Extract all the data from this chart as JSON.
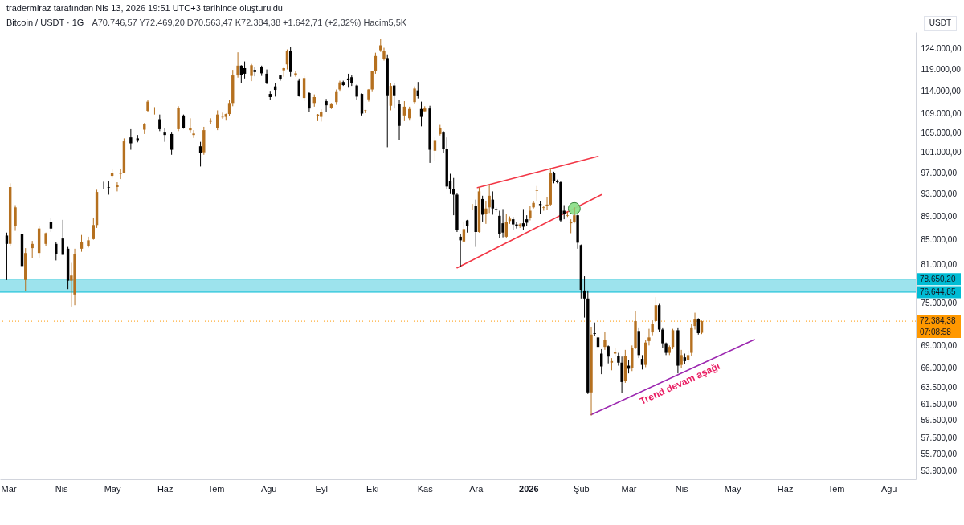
{
  "chart_data": {
    "type": "candlestick",
    "title": "Bitcoin / USDT · 1G",
    "subtitle": "A70.746,57 Y72.469,20 D70.563,47 K72.384,38 +1.642,71 (+2,32%) Hacim5,5K",
    "annotations": [
      "tradermiraz tarafından Nis 13, 2026 19:51 UTC+3 tarihinde oluşturuldu",
      "USDT",
      "07:08:58",
      "Trend devam aşağı"
    ],
    "x": [
      "2025-02-28",
      "2025-03-02",
      "2025-03-05",
      "2025-03-09",
      "2025-03-11",
      "2025-03-15",
      "2025-03-19",
      "2025-03-23",
      "2025-03-26",
      "2025-03-29",
      "2025-04-02",
      "2025-04-05",
      "2025-04-07",
      "2025-04-09",
      "2025-04-13",
      "2025-04-17",
      "2025-04-20",
      "2025-04-22",
      "2025-04-26",
      "2025-04-29",
      "2025-05-01",
      "2025-05-04",
      "2025-05-06",
      "2025-05-08",
      "2025-05-12",
      "2025-05-16",
      "2025-05-20",
      "2025-05-22",
      "2025-05-26",
      "2025-05-29",
      "2025-06-01",
      "2025-06-05",
      "2025-06-09",
      "2025-06-12",
      "2025-06-16",
      "2025-06-18",
      "2025-06-22",
      "2025-06-24",
      "2025-06-28",
      "2025-07-02",
      "2025-07-05",
      "2025-07-07",
      "2025-07-09",
      "2025-07-11",
      "2025-07-14",
      "2025-07-16",
      "2025-07-18",
      "2025-07-22",
      "2025-07-24",
      "2025-07-28",
      "2025-07-31",
      "2025-08-02",
      "2025-08-05",
      "2025-08-08",
      "2025-08-10",
      "2025-08-12",
      "2025-08-14",
      "2025-08-17",
      "2025-08-19",
      "2025-08-22",
      "2025-08-25",
      "2025-08-28",
      "2025-08-30",
      "2025-09-01",
      "2025-09-04",
      "2025-09-07",
      "2025-09-10",
      "2025-09-12",
      "2025-09-14",
      "2025-09-17",
      "2025-09-19",
      "2025-09-22",
      "2025-09-25",
      "2025-09-27",
      "2025-09-29",
      "2025-10-01",
      "2025-10-03",
      "2025-10-06",
      "2025-10-08",
      "2025-10-10",
      "2025-10-12",
      "2025-10-14",
      "2025-10-17",
      "2025-10-20",
      "2025-10-23",
      "2025-10-26",
      "2025-10-28",
      "2025-10-30",
      "2025-11-01",
      "2025-11-04",
      "2025-11-07",
      "2025-11-10",
      "2025-11-12",
      "2025-11-14",
      "2025-11-16",
      "2025-11-18",
      "2025-11-20",
      "2025-11-22",
      "2025-11-24",
      "2025-11-26",
      "2025-11-29",
      "2025-12-01",
      "2025-12-03",
      "2025-12-05",
      "2025-12-07",
      "2025-12-09",
      "2025-12-11",
      "2025-12-13",
      "2025-12-15",
      "2025-12-17",
      "2025-12-19",
      "2025-12-21",
      "2025-12-23",
      "2025-12-25",
      "2025-12-27",
      "2025-12-29",
      "2025-12-31",
      "2026-01-02",
      "2026-01-04",
      "2026-01-06",
      "2026-01-08",
      "2026-01-10",
      "2026-01-12",
      "2026-01-14",
      "2026-01-16",
      "2026-01-18",
      "2026-01-20",
      "2026-01-22",
      "2026-01-24",
      "2026-01-26",
      "2026-01-28",
      "2026-01-30",
      "2026-02-01",
      "2026-02-03",
      "2026-02-05",
      "2026-02-07",
      "2026-02-09",
      "2026-02-11",
      "2026-02-13",
      "2026-02-15",
      "2026-02-17",
      "2026-02-19",
      "2026-02-21",
      "2026-02-23",
      "2026-02-25",
      "2026-02-27",
      "2026-03-01",
      "2026-03-03",
      "2026-03-05",
      "2026-03-07",
      "2026-03-09",
      "2026-03-11",
      "2026-03-13",
      "2026-03-15",
      "2026-03-17",
      "2026-03-19",
      "2026-03-21",
      "2026-03-23",
      "2026-03-25",
      "2026-03-27",
      "2026-03-30",
      "2026-04-01",
      "2026-04-03",
      "2026-04-05",
      "2026-04-07",
      "2026-04-09",
      "2026-04-11",
      "2026-04-13"
    ],
    "ohlc": [
      [
        85700,
        86200,
        78500,
        84300
      ],
      [
        84300,
        95000,
        84000,
        94300
      ],
      [
        87300,
        91000,
        86500,
        90600
      ],
      [
        86000,
        86500,
        80600,
        80700
      ],
      [
        78500,
        83600,
        76800,
        82800
      ],
      [
        83600,
        84800,
        82000,
        84300
      ],
      [
        82800,
        87300,
        82000,
        86900
      ],
      [
        84300,
        86200,
        83900,
        86100
      ],
      [
        88000,
        88700,
        86300,
        86900
      ],
      [
        84300,
        84600,
        81600,
        82600
      ],
      [
        85200,
        88400,
        82500,
        82500
      ],
      [
        83500,
        83800,
        77100,
        78400
      ],
      [
        78400,
        81200,
        74500,
        79200
      ],
      [
        76300,
        83500,
        74700,
        82600
      ],
      [
        83500,
        85800,
        83000,
        84600
      ],
      [
        84000,
        85500,
        83700,
        84900
      ],
      [
        85100,
        88800,
        85000,
        87500
      ],
      [
        87500,
        93800,
        87000,
        93400
      ],
      [
        94700,
        95300,
        93900,
        94600
      ],
      [
        94300,
        95500,
        92900,
        94200
      ],
      [
        96400,
        97800,
        96000,
        96900
      ],
      [
        94300,
        95200,
        93500,
        94700
      ],
      [
        96800,
        97700,
        95800,
        97000
      ],
      [
        97000,
        103800,
        96900,
        103200
      ],
      [
        104000,
        105700,
        101500,
        102800
      ],
      [
        103800,
        104500,
        103000,
        103300
      ],
      [
        105600,
        107000,
        104700,
        106800
      ],
      [
        109600,
        111900,
        109300,
        111600
      ],
      [
        109300,
        110400,
        108800,
        109400
      ],
      [
        107800,
        108800,
        105300,
        105700
      ],
      [
        105000,
        105900,
        103100,
        104500
      ],
      [
        104700,
        105000,
        100500,
        101500
      ],
      [
        105700,
        110600,
        105300,
        110300
      ],
      [
        108600,
        108800,
        105800,
        106000
      ],
      [
        105500,
        108000,
        104900,
        106000
      ],
      [
        104500,
        105500,
        103900,
        104800
      ],
      [
        102200,
        103100,
        98200,
        100900
      ],
      [
        101000,
        106200,
        100500,
        105500
      ],
      [
        107300,
        108000,
        106800,
        107400
      ],
      [
        105900,
        109700,
        105500,
        108800
      ],
      [
        108200,
        109200,
        107900,
        108300
      ],
      [
        108300,
        109000,
        107500,
        108900
      ],
      [
        108900,
        111900,
        108400,
        111300
      ],
      [
        111300,
        118800,
        110600,
        117500
      ],
      [
        117500,
        123000,
        117000,
        119800
      ],
      [
        119800,
        119900,
        115700,
        117700
      ],
      [
        119200,
        120800,
        116800,
        117900
      ],
      [
        117400,
        120200,
        116200,
        119900
      ],
      [
        118800,
        119500,
        117300,
        118300
      ],
      [
        119400,
        119800,
        117400,
        118000
      ],
      [
        117900,
        118900,
        115500,
        115800
      ],
      [
        113300,
        114000,
        112000,
        112600
      ],
      [
        115000,
        115700,
        112700,
        114200
      ],
      [
        117500,
        117600,
        116300,
        116600
      ],
      [
        118700,
        119300,
        117200,
        119200
      ],
      [
        120100,
        123700,
        118900,
        123300
      ],
      [
        123300,
        124400,
        117200,
        118300
      ],
      [
        117500,
        118600,
        117200,
        118000
      ],
      [
        116300,
        116800,
        112700,
        112900
      ],
      [
        112400,
        117400,
        111700,
        116900
      ],
      [
        113500,
        113700,
        109300,
        110100
      ],
      [
        111300,
        113200,
        110500,
        112600
      ],
      [
        108400,
        108900,
        107400,
        108800
      ],
      [
        108300,
        109900,
        107300,
        109300
      ],
      [
        111700,
        112200,
        109300,
        110800
      ],
      [
        110300,
        111300,
        110000,
        111200
      ],
      [
        111500,
        114300,
        110900,
        113900
      ],
      [
        114300,
        116300,
        114000,
        115900
      ],
      [
        116000,
        116300,
        115100,
        115300
      ],
      [
        116800,
        117900,
        114700,
        116400
      ],
      [
        117100,
        117500,
        115100,
        115700
      ],
      [
        115200,
        115400,
        111900,
        112700
      ],
      [
        113300,
        113400,
        108600,
        109000
      ],
      [
        109600,
        109800,
        109100,
        109700
      ],
      [
        112100,
        114400,
        111600,
        114300
      ],
      [
        114300,
        118600,
        113900,
        118500
      ],
      [
        118500,
        122900,
        117900,
        122100
      ],
      [
        123500,
        126200,
        123100,
        124700
      ],
      [
        121400,
        124100,
        121000,
        123300
      ],
      [
        121600,
        122500,
        102000,
        113000
      ],
      [
        110700,
        115700,
        109700,
        115100
      ],
      [
        115200,
        115700,
        110100,
        113000
      ],
      [
        111000,
        111900,
        103500,
        106400
      ],
      [
        108600,
        111700,
        107400,
        110500
      ],
      [
        108000,
        110500,
        107500,
        110000
      ],
      [
        111500,
        115000,
        111200,
        114500
      ],
      [
        114100,
        116000,
        112300,
        112900
      ],
      [
        110000,
        111600,
        106300,
        108300
      ],
      [
        109500,
        110600,
        109500,
        110100
      ],
      [
        110100,
        110700,
        98900,
        101500
      ],
      [
        101300,
        104000,
        99300,
        103300
      ],
      [
        104700,
        106600,
        104400,
        105900
      ],
      [
        105000,
        105300,
        100800,
        101600
      ],
      [
        101600,
        104000,
        94000,
        94400
      ],
      [
        95500,
        96800,
        93000,
        94000
      ],
      [
        94000,
        96000,
        89200,
        92900
      ],
      [
        92900,
        93100,
        86300,
        86600
      ],
      [
        85500,
        86000,
        80600,
        84900
      ],
      [
        84700,
        88000,
        84600,
        86800
      ],
      [
        88300,
        88400,
        86200,
        87400
      ],
      [
        90800,
        91200,
        90200,
        90900
      ],
      [
        90900,
        92000,
        83800,
        86300
      ],
      [
        86300,
        94200,
        86200,
        93500
      ],
      [
        92100,
        92700,
        88100,
        89300
      ],
      [
        89400,
        91800,
        87700,
        90400
      ],
      [
        90600,
        94600,
        89600,
        92700
      ],
      [
        92000,
        93500,
        89300,
        90400
      ],
      [
        90300,
        90600,
        89800,
        90100
      ],
      [
        89100,
        90000,
        85300,
        86000
      ],
      [
        87800,
        90300,
        85400,
        86200
      ],
      [
        85500,
        89400,
        85300,
        88100
      ],
      [
        88200,
        89000,
        87700,
        88600
      ],
      [
        88500,
        88900,
        86600,
        87600
      ],
      [
        87600,
        88000,
        86900,
        87300
      ],
      [
        87300,
        87800,
        87000,
        87600
      ],
      [
        87800,
        90300,
        86700,
        87200
      ],
      [
        88500,
        89200,
        87400,
        87900
      ],
      [
        88700,
        90900,
        88300,
        90000
      ],
      [
        90600,
        91800,
        90400,
        91400
      ],
      [
        93600,
        94500,
        91800,
        93700
      ],
      [
        91200,
        91700,
        89500,
        91000
      ],
      [
        90500,
        90800,
        90000,
        90600
      ],
      [
        90800,
        92400,
        90100,
        91100
      ],
      [
        91100,
        97900,
        90900,
        97000
      ],
      [
        97000,
        97200,
        95000,
        95500
      ],
      [
        95500,
        95700,
        95000,
        95200
      ],
      [
        95200,
        95500,
        88000,
        88300
      ],
      [
        90000,
        91000,
        88500,
        89500
      ],
      [
        89100,
        89800,
        88900,
        89200
      ],
      [
        87800,
        88500,
        86100,
        88100
      ],
      [
        88100,
        90600,
        87800,
        89200
      ],
      [
        89200,
        89300,
        83500,
        84500
      ],
      [
        84100,
        84200,
        75700,
        77000
      ],
      [
        76900,
        79100,
        72900,
        75700
      ],
      [
        75700,
        76900,
        62700,
        62900
      ],
      [
        62900,
        71600,
        60100,
        70500
      ],
      [
        70700,
        72200,
        70300,
        70600
      ],
      [
        70100,
        70400,
        68300,
        68800
      ],
      [
        67900,
        68500,
        65200,
        66200
      ],
      [
        68800,
        70900,
        68400,
        69700
      ],
      [
        68900,
        69000,
        66600,
        67500
      ],
      [
        66700,
        67300,
        65700,
        66900
      ],
      [
        67900,
        68700,
        67500,
        68100
      ],
      [
        67600,
        68000,
        66300,
        66700
      ],
      [
        66700,
        67500,
        62800,
        64200
      ],
      [
        64300,
        68400,
        64100,
        67600
      ],
      [
        66300,
        67100,
        65300,
        65900
      ],
      [
        66000,
        69000,
        65600,
        68700
      ],
      [
        68700,
        73900,
        68500,
        72400
      ],
      [
        71000,
        71500,
        67300,
        67700
      ],
      [
        67200,
        67700,
        65800,
        66400
      ],
      [
        66400,
        69700,
        66100,
        69400
      ],
      [
        69600,
        71300,
        69000,
        70100
      ],
      [
        70800,
        72500,
        70400,
        72000
      ],
      [
        72400,
        75900,
        72200,
        74700
      ],
      [
        74700,
        74900,
        70900,
        71200
      ],
      [
        71200,
        71500,
        68600,
        69300
      ],
      [
        69300,
        69400,
        67700,
        68000
      ],
      [
        68000,
        69000,
        67700,
        68800
      ],
      [
        68800,
        71300,
        68500,
        71100
      ],
      [
        71100,
        71500,
        65300,
        66300
      ],
      [
        66400,
        68400,
        66000,
        67700
      ],
      [
        67400,
        67900,
        66500,
        66900
      ],
      [
        67100,
        68300,
        66800,
        67700
      ],
      [
        68000,
        72000,
        67600,
        71500
      ],
      [
        71700,
        73600,
        71200,
        72700
      ],
      [
        72700,
        72800,
        70500,
        70700
      ],
      [
        70746.57,
        72469.2,
        70563.47,
        72384.38
      ]
    ],
    "colors": [
      "#000000",
      "#b5701f",
      "#b5701f",
      "#000000",
      "#b5701f",
      "#b5701f",
      "#b5701f",
      "#b5701f",
      "#000000",
      "#000000",
      "#000000",
      "#000000",
      "#b5701f",
      "#b5701f",
      "#b5701f",
      "#b5701f",
      "#b5701f",
      "#b5701f",
      "#000000",
      "#000000",
      "#b5701f",
      "#b5701f",
      "#b5701f",
      "#b5701f",
      "#000000",
      "#000000",
      "#b5701f",
      "#b5701f",
      "#b5701f",
      "#000000",
      "#000000",
      "#000000",
      "#b5701f",
      "#000000",
      "#b5701f",
      "#b5701f",
      "#000000",
      "#b5701f",
      "#b5701f",
      "#b5701f",
      "#b5701f",
      "#b5701f",
      "#b5701f",
      "#b5701f",
      "#b5701f",
      "#000000",
      "#000000",
      "#b5701f",
      "#000000",
      "#000000",
      "#000000",
      "#000000",
      "#000000",
      "#000000",
      "#b5701f",
      "#b5701f",
      "#000000",
      "#b5701f",
      "#000000",
      "#b5701f",
      "#000000",
      "#b5701f",
      "#b5701f",
      "#b5701f",
      "#000000",
      "#b5701f",
      "#b5701f",
      "#b5701f",
      "#000000",
      "#000000",
      "#000000",
      "#000000",
      "#000000",
      "#b5701f",
      "#b5701f",
      "#b5701f",
      "#b5701f",
      "#b5701f",
      "#b5701f",
      "#000000",
      "#b5701f",
      "#000000",
      "#000000",
      "#b5701f",
      "#b5701f",
      "#b5701f",
      "#000000",
      "#000000",
      "#b5701f",
      "#000000",
      "#b5701f",
      "#b5701f",
      "#000000",
      "#000000",
      "#000000",
      "#000000",
      "#000000",
      "#000000",
      "#b5701f",
      "#000000",
      "#b5701f",
      "#000000",
      "#b5701f",
      "#000000",
      "#b5701f",
      "#b5701f",
      "#000000",
      "#000000",
      "#000000",
      "#000000",
      "#b5701f",
      "#b5701f",
      "#000000",
      "#000000",
      "#b5701f",
      "#000000",
      "#000000",
      "#b5701f",
      "#b5701f",
      "#b5701f",
      "#000000",
      "#b5701f",
      "#b5701f",
      "#b5701f",
      "#000000",
      "#000000",
      "#000000",
      "#000000",
      "#b5701f",
      "#b5701f",
      "#b5701f",
      "#000000",
      "#000000",
      "#000000",
      "#000000",
      "#b5701f",
      "#000000",
      "#000000",
      "#000000",
      "#b5701f",
      "#000000",
      "#b5701f",
      "#b5701f",
      "#000000",
      "#000000",
      "#b5701f",
      "#000000",
      "#b5701f",
      "#b5701f",
      "#000000",
      "#000000",
      "#b5701f",
      "#b5701f",
      "#b5701f",
      "#b5701f",
      "#000000",
      "#000000",
      "#000000",
      "#b5701f",
      "#b5701f",
      "#000000",
      "#b5701f",
      "#000000",
      "#b5701f",
      "#b5701f",
      "#b5701f",
      "#000000",
      "#b5701f"
    ],
    "series": [
      {
        "type": "line",
        "x": [
          "2025-11-20",
          "2026-02-13"
        ],
        "values": [
          80400,
          92900
        ],
        "color": "#f23645"
      },
      {
        "type": "line",
        "x": [
          "2025-12-02",
          "2026-02-11"
        ],
        "values": [
          94200,
          100200
        ],
        "color": "#f23645"
      },
      {
        "type": "line",
        "x": [
          "2026-02-07",
          "2026-05-14"
        ],
        "values": [
          60200,
          69800
        ],
        "color": "#9c27b0"
      },
      {
        "type": "scatter",
        "x": [
          "2026-01-28"
        ],
        "values": [
          90400
        ],
        "color": "#8ee08c",
        "marker": "circle"
      }
    ],
    "bands": [
      {
        "axis": "y",
        "from": 76644.85,
        "to": 78650.2,
        "color": "#9de3ed"
      }
    ],
    "ref_lines": [
      {
        "axis": "y",
        "value": 78650.2,
        "label": "78.650,20",
        "color": "#00bcd4"
      },
      {
        "axis": "y",
        "value": 76644.85,
        "label": "76.644,85",
        "color": "#00bcd4"
      },
      {
        "axis": "y",
        "value": 72384.38,
        "label": "72.384,38",
        "color": "#ff9800",
        "line_style": "dotted"
      }
    ],
    "log": true,
    "xlim": [
      "2025-02-24",
      "2026-08-17"
    ],
    "xticks": [
      {
        "value": "2025-03-01",
        "label": "Mar"
      },
      {
        "value": "2025-04-01",
        "label": "Nis"
      },
      {
        "value": "2025-05-01",
        "label": "May"
      },
      {
        "value": "2025-06-01",
        "label": "Haz"
      },
      {
        "value": "2025-07-01",
        "label": "Tem"
      },
      {
        "value": "2025-08-01",
        "label": "Ağu"
      },
      {
        "value": "2025-09-01",
        "label": "Eyl"
      },
      {
        "value": "2025-10-01",
        "label": "Eki"
      },
      {
        "value": "2025-11-01",
        "label": "Kas"
      },
      {
        "value": "2025-12-01",
        "label": "Ara"
      },
      {
        "value": "2026-01-01",
        "label": "2026"
      },
      {
        "value": "2026-02-01",
        "label": "Şub"
      },
      {
        "value": "2026-03-01",
        "label": "Mar"
      },
      {
        "value": "2026-04-01",
        "label": "Nis"
      },
      {
        "value": "2026-05-01",
        "label": "May"
      },
      {
        "value": "2026-06-01",
        "label": "Haz"
      },
      {
        "value": "2026-07-01",
        "label": "Tem"
      },
      {
        "value": "2026-08-01",
        "label": "Ağu"
      }
    ],
    "ylim": [
      53000,
      128000
    ],
    "yticks": [
      {
        "value": 124000,
        "label": "124.000,00"
      },
      {
        "value": 119000,
        "label": "119.000,00"
      },
      {
        "value": 114000,
        "label": "114.000,00"
      },
      {
        "value": 109000,
        "label": "109.000,00"
      },
      {
        "value": 105000,
        "label": "105.000,00"
      },
      {
        "value": 101000,
        "label": "101.000,00"
      },
      {
        "value": 97000,
        "label": "97.000,00"
      },
      {
        "value": 93000,
        "label": "93.000,00"
      },
      {
        "value": 89000,
        "label": "89.000,00"
      },
      {
        "value": 85000,
        "label": "85.000,00"
      },
      {
        "value": 81000,
        "label": "81.000,00"
      },
      {
        "value": 75000,
        "label": "75.000,00"
      },
      {
        "value": 69000,
        "label": "69.000,00"
      },
      {
        "value": 66000,
        "label": "66.000,00"
      },
      {
        "value": 63500,
        "label": "63.500,00"
      },
      {
        "value": 61500,
        "label": "61.500,00"
      },
      {
        "value": 59500,
        "label": "59.500,00"
      },
      {
        "value": 57500,
        "label": "57.500,00"
      },
      {
        "value": 55700,
        "label": "55.700,00"
      },
      {
        "value": 53900,
        "label": "53.900,00"
      }
    ]
  }
}
